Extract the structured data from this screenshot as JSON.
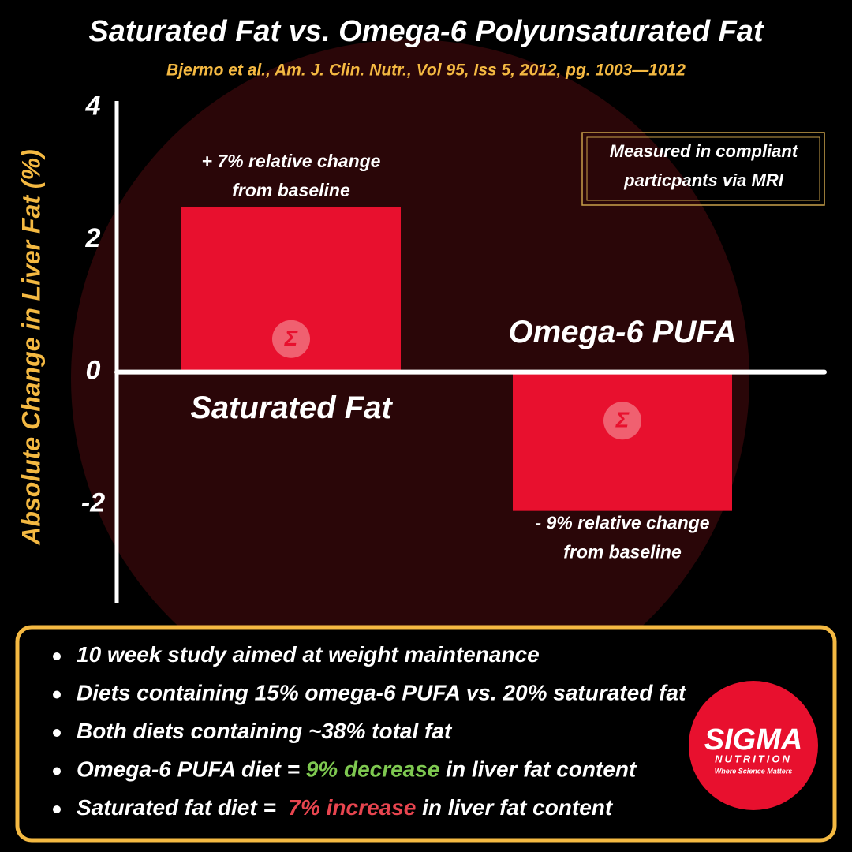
{
  "chart_data": {
    "type": "bar",
    "title": "Saturated Fat vs. Omega-6 Polyunsaturated Fat",
    "subtitle": "Bjermo et al., Am. J. Clin. Nutr., Vol 95, Iss 5, 2012, pg. 1003—1012",
    "y_label": "Absolute Change in Liver Fat (%)",
    "categories": [
      "Saturated Fat",
      "Omega-6 PUFA"
    ],
    "values": [
      2.5,
      -2.1
    ],
    "color": "#e8102e",
    "ylim": [
      -3.5,
      4.1
    ],
    "yticks": [
      -2,
      0,
      2,
      4
    ],
    "annotations": [
      [
        "+ 7% relative change",
        "from baseline"
      ],
      [
        "- 9% relative change",
        "from baseline"
      ]
    ],
    "note": [
      "Measured in compliant",
      "particpants via MRI"
    ]
  },
  "summary": {
    "bullets": [
      [
        {
          "text": "10 week study aimed at weight maintenance"
        }
      ],
      [
        {
          "text": "Diets containing 15% omega-6 PUFA vs. 20% saturated fat"
        }
      ],
      [
        {
          "text": "Both diets containing ~38% total fat"
        }
      ],
      [
        {
          "text": "Omega-6 PUFA diet = "
        },
        {
          "text": "9% decrease",
          "color": "#7ec850"
        },
        {
          "text": " in liver fat content"
        }
      ],
      [
        {
          "text": "Saturated fat diet =  "
        },
        {
          "text": "7% increase",
          "color": "#e8454f"
        },
        {
          "text": " in liver fat content"
        }
      ]
    ]
  },
  "logo": {
    "name": "SIGMA",
    "subname": "NUTRITION",
    "tagline": "Where Science Matters"
  }
}
